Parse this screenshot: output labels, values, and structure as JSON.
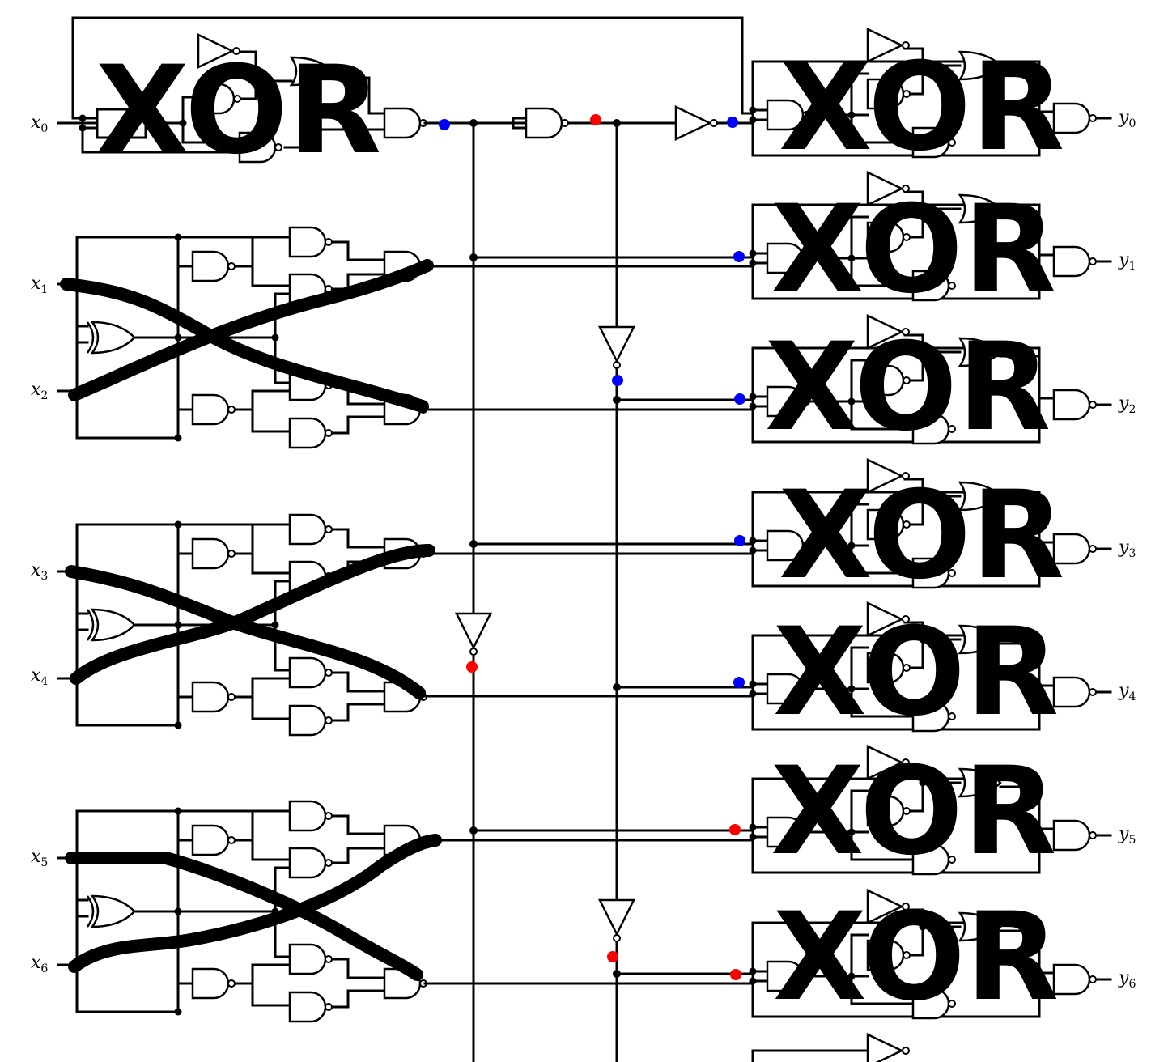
{
  "inputs": [
    {
      "label": "x",
      "sub": "0"
    },
    {
      "label": "x",
      "sub": "1"
    },
    {
      "label": "x",
      "sub": "2"
    },
    {
      "label": "x",
      "sub": "3"
    },
    {
      "label": "x",
      "sub": "4"
    },
    {
      "label": "x",
      "sub": "5"
    },
    {
      "label": "x",
      "sub": "6"
    }
  ],
  "outputs": [
    {
      "label": "y",
      "sub": "0"
    },
    {
      "label": "y",
      "sub": "1"
    },
    {
      "label": "y",
      "sub": "2"
    },
    {
      "label": "y",
      "sub": "3"
    },
    {
      "label": "y",
      "sub": "4"
    },
    {
      "label": "y",
      "sub": "5"
    },
    {
      "label": "y",
      "sub": "6"
    }
  ],
  "overlay_text": "XOR",
  "colors": {
    "wire": "#000000",
    "blue_marker": "#0000ff",
    "red_marker": "#ff0000",
    "background": "#ffffff"
  }
}
